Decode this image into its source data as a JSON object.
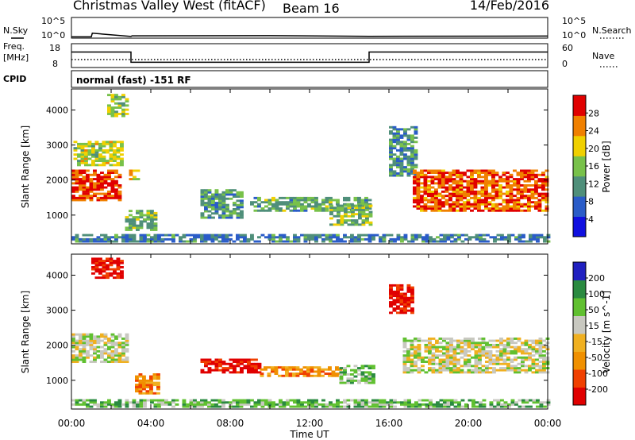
{
  "header": {
    "station": "Christmas Valley West (fitACF)",
    "beam": "Beam 16",
    "date": "14/Feb/2016"
  },
  "chart_data": [
    {
      "type": "line",
      "name": "noise-panel",
      "left_label": "N.Sky",
      "right_label": "N.Search",
      "left_ticks": [
        "10^5",
        "10^0"
      ],
      "right_ticks": [
        "10^5",
        "10^0"
      ],
      "x": [
        0,
        1.0,
        1.05,
        3.0,
        3.05,
        10.0,
        15.0,
        24.0
      ],
      "y_log10": [
        0.3,
        0.3,
        1.2,
        0.4,
        0.55,
        0.6,
        0.45,
        0.5
      ]
    },
    {
      "type": "line",
      "name": "freq-nave-panel",
      "left_label": "Freq.",
      "left_unit": "[MHz]",
      "right_label": "Nave",
      "left_ticks": [
        "18",
        "8"
      ],
      "right_ticks": [
        "60",
        "0"
      ],
      "freq_steps": [
        {
          "from": 0,
          "to": 3,
          "value": 14.5
        },
        {
          "from": 3,
          "to": 15,
          "value": 10.2
        },
        {
          "from": 15,
          "to": 24,
          "value": 14.5
        }
      ],
      "nave_level": 20,
      "cpid_label": "CPID",
      "mode_text": "normal (fast) -151 RF"
    },
    {
      "type": "heatmap",
      "name": "power-panel",
      "ylabel": "Slant Range [km]",
      "ylim": [
        180,
        4600
      ],
      "yticks": [
        1000,
        2000,
        3000,
        4000
      ],
      "xlim": [
        0,
        24
      ],
      "colorbar_label": "Power [dB]",
      "colorbar_ticks": [
        "28",
        "24",
        "20",
        "16",
        "12",
        "8",
        "4"
      ],
      "colors": [
        "#1010e0",
        "#2a5cc8",
        "#4f8f7a",
        "#78c14a",
        "#f0d000",
        "#f08000",
        "#e00000"
      ],
      "regions": [
        {
          "t0": 0.0,
          "t1": 2.4,
          "r0": 1400,
          "r1": 2300,
          "level": 5.6
        },
        {
          "t0": 0.1,
          "t1": 2.5,
          "r0": 2400,
          "r1": 3100,
          "level": 3.5
        },
        {
          "t0": 1.8,
          "t1": 2.8,
          "r0": 3800,
          "r1": 4450,
          "level": 3.2
        },
        {
          "t0": 2.9,
          "t1": 3.4,
          "r0": 2000,
          "r1": 2300,
          "level": 4.5
        },
        {
          "t0": 2.7,
          "t1": 4.2,
          "r0": 550,
          "r1": 1100,
          "level": 2.6
        },
        {
          "t0": 6.5,
          "t1": 8.5,
          "r0": 900,
          "r1": 1700,
          "level": 2.2
        },
        {
          "t0": 9.0,
          "t1": 15.0,
          "r0": 1100,
          "r1": 1500,
          "level": 2.5
        },
        {
          "t0": 13.0,
          "t1": 15.0,
          "r0": 700,
          "r1": 1300,
          "level": 2.8
        },
        {
          "t0": 16.0,
          "t1": 17.3,
          "r0": 2100,
          "r1": 3500,
          "level": 2.0
        },
        {
          "t0": 17.2,
          "t1": 24.0,
          "r0": 1100,
          "r1": 2300,
          "level": 5.4
        },
        {
          "t0": 0.0,
          "t1": 24.0,
          "r0": 220,
          "r1": 420,
          "level": 1.6
        }
      ]
    },
    {
      "type": "heatmap",
      "name": "velocity-panel",
      "ylabel": "Slant Range [km]",
      "ylim": [
        180,
        4600
      ],
      "yticks": [
        1000,
        2000,
        3000,
        4000
      ],
      "xlim": [
        0,
        24
      ],
      "xticks": [
        "00:00",
        "04:00",
        "08:00",
        "12:00",
        "16:00",
        "20:00",
        "00:00"
      ],
      "xlabel": "Time UT",
      "colorbar_label": "Velocity [m s^-1]",
      "colorbar_ticks": [
        "200",
        "100",
        "50",
        "15",
        "-15",
        "-50",
        "-100",
        "-200"
      ],
      "colors": [
        "#e00000",
        "#f04000",
        "#f09000",
        "#f0b020",
        "#c8c8c0",
        "#60c030",
        "#2a8a40",
        "#2020c0"
      ],
      "regions": [
        {
          "t0": 0.0,
          "t1": 2.8,
          "r0": 1500,
          "r1": 2300,
          "level": 4
        },
        {
          "t0": 1.0,
          "t1": 2.5,
          "r0": 3900,
          "r1": 4450,
          "level": 0
        },
        {
          "t0": 3.2,
          "t1": 4.3,
          "r0": 600,
          "r1": 1200,
          "level": 2
        },
        {
          "t0": 6.5,
          "t1": 9.5,
          "r0": 1200,
          "r1": 1600,
          "level": 0
        },
        {
          "t0": 9.5,
          "t1": 13.5,
          "r0": 1100,
          "r1": 1400,
          "level": 2
        },
        {
          "t0": 13.5,
          "t1": 15.2,
          "r0": 900,
          "r1": 1400,
          "level": 5
        },
        {
          "t0": 16.0,
          "t1": 17.2,
          "r0": 2900,
          "r1": 3700,
          "level": 0
        },
        {
          "t0": 16.7,
          "t1": 24.0,
          "r0": 1200,
          "r1": 2200,
          "level": 4
        },
        {
          "t0": 0.0,
          "t1": 24.0,
          "r0": 220,
          "r1": 420,
          "level": 5
        }
      ]
    }
  ]
}
